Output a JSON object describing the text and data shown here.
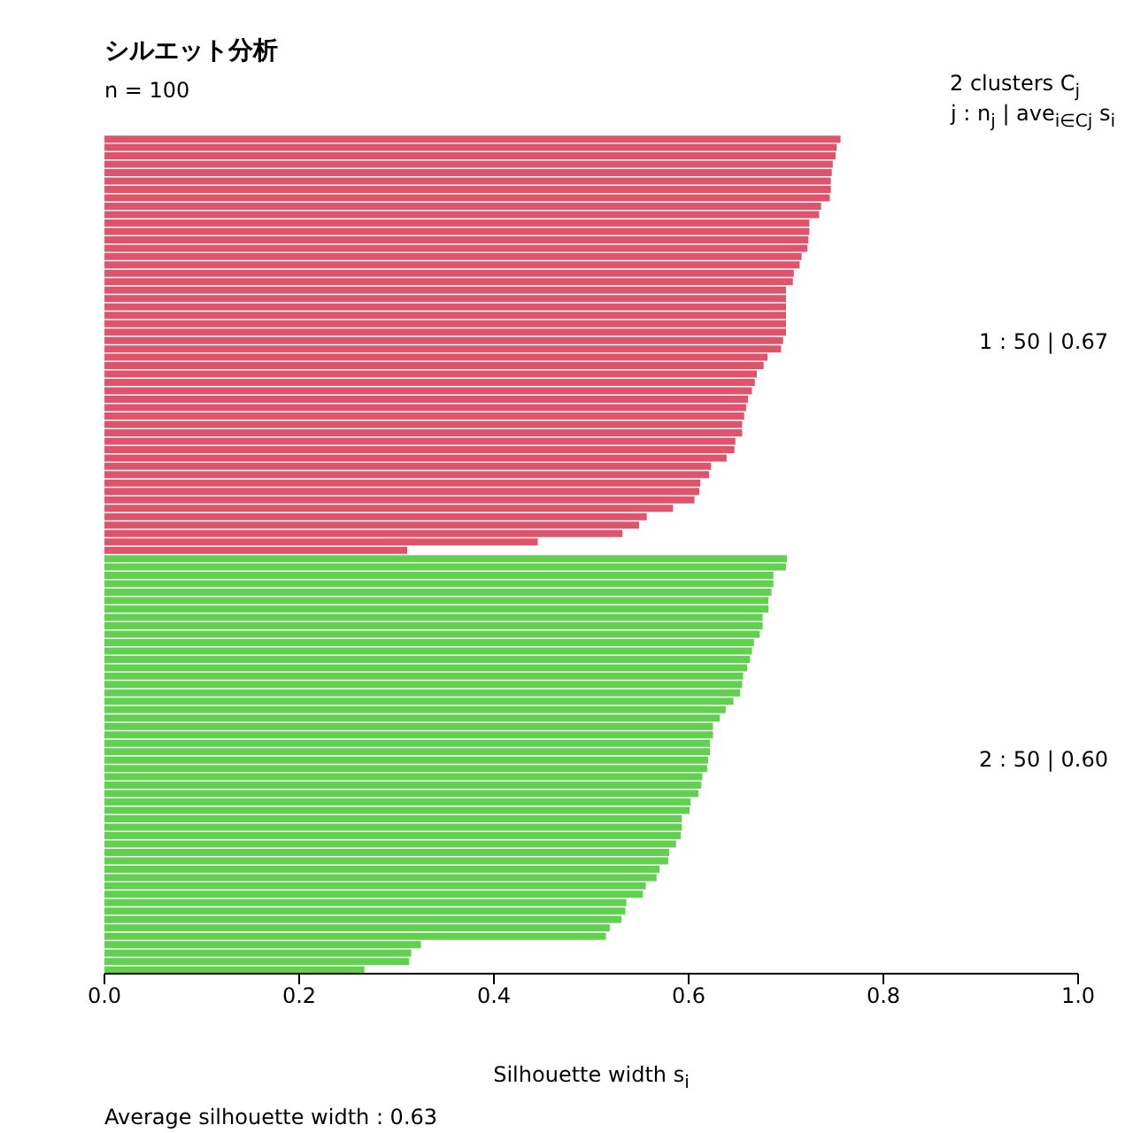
{
  "chart_data": {
    "type": "bar",
    "orientation": "horizontal",
    "title": "シルエット分析",
    "subtitle": "n = 100",
    "xlabel": "Silhouette width s$_{i}$",
    "annotations": [
      "2  clusters  C$_{j}$",
      "j :  n$_{j}$ | ave$_{i∈Cj}$  s$_{i}$",
      "1 :  50  |  0.67",
      "2 :  50  |  0.60",
      "Average silhouette width :  0.63"
    ],
    "categories": [
      null,
      null,
      null,
      null,
      null,
      null,
      null,
      null,
      null,
      null,
      null,
      null,
      null,
      null,
      null,
      null,
      null,
      null,
      null,
      null,
      null,
      null,
      null,
      null,
      null,
      null,
      null,
      null,
      null,
      null,
      null,
      null,
      null,
      null,
      null,
      null,
      null,
      null,
      null,
      null,
      null,
      null,
      null,
      null,
      null,
      null,
      null,
      null,
      null,
      null,
      null,
      null,
      null,
      null,
      null,
      null,
      null,
      null,
      null,
      null,
      null,
      null,
      null,
      null,
      null,
      null,
      null,
      null,
      null,
      null,
      null,
      null,
      null,
      null,
      null,
      null,
      null,
      null,
      null,
      null,
      null,
      null,
      null,
      null,
      null,
      null,
      null,
      null,
      null,
      null,
      null,
      null,
      null,
      null,
      null,
      null,
      null,
      null,
      null,
      null
    ],
    "values": [
      0.756,
      0.752,
      0.751,
      0.748,
      0.747,
      0.746,
      0.746,
      0.745,
      0.736,
      0.734,
      0.724,
      0.724,
      0.723,
      0.722,
      0.716,
      0.714,
      0.708,
      0.707,
      0.7,
      0.7,
      0.7,
      0.7,
      0.7,
      0.7,
      0.697,
      0.695,
      0.681,
      0.677,
      0.67,
      0.668,
      0.665,
      0.661,
      0.659,
      0.657,
      0.655,
      0.655,
      0.648,
      0.647,
      0.639,
      0.623,
      0.621,
      0.612,
      0.611,
      0.606,
      0.584,
      0.557,
      0.549,
      0.532,
      0.445,
      0.311,
      0.701,
      0.7,
      0.687,
      0.687,
      0.685,
      0.682,
      0.682,
      0.676,
      0.676,
      0.673,
      0.667,
      0.665,
      0.663,
      0.66,
      0.656,
      0.655,
      0.653,
      0.646,
      0.638,
      0.632,
      0.625,
      0.625,
      0.622,
      0.622,
      0.62,
      0.619,
      0.614,
      0.613,
      0.61,
      0.602,
      0.601,
      0.593,
      0.593,
      0.592,
      0.587,
      0.58,
      0.579,
      0.57,
      0.567,
      0.556,
      0.553,
      0.536,
      0.535,
      0.531,
      0.519,
      0.515,
      0.325,
      0.315,
      0.313,
      0.267
    ],
    "colors": [
      "#df536b",
      "#df536b",
      "#df536b",
      "#df536b",
      "#df536b",
      "#df536b",
      "#df536b",
      "#df536b",
      "#df536b",
      "#df536b",
      "#df536b",
      "#df536b",
      "#df536b",
      "#df536b",
      "#df536b",
      "#df536b",
      "#df536b",
      "#df536b",
      "#df536b",
      "#df536b",
      "#df536b",
      "#df536b",
      "#df536b",
      "#df536b",
      "#df536b",
      "#df536b",
      "#df536b",
      "#df536b",
      "#df536b",
      "#df536b",
      "#df536b",
      "#df536b",
      "#df536b",
      "#df536b",
      "#df536b",
      "#df536b",
      "#df536b",
      "#df536b",
      "#df536b",
      "#df536b",
      "#df536b",
      "#df536b",
      "#df536b",
      "#df536b",
      "#df536b",
      "#df536b",
      "#df536b",
      "#df536b",
      "#df536b",
      "#df536b",
      "#61d04f",
      "#61d04f",
      "#61d04f",
      "#61d04f",
      "#61d04f",
      "#61d04f",
      "#61d04f",
      "#61d04f",
      "#61d04f",
      "#61d04f",
      "#61d04f",
      "#61d04f",
      "#61d04f",
      "#61d04f",
      "#61d04f",
      "#61d04f",
      "#61d04f",
      "#61d04f",
      "#61d04f",
      "#61d04f",
      "#61d04f",
      "#61d04f",
      "#61d04f",
      "#61d04f",
      "#61d04f",
      "#61d04f",
      "#61d04f",
      "#61d04f",
      "#61d04f",
      "#61d04f",
      "#61d04f",
      "#61d04f",
      "#61d04f",
      "#61d04f",
      "#61d04f",
      "#61d04f",
      "#61d04f",
      "#61d04f",
      "#61d04f",
      "#61d04f",
      "#61d04f",
      "#61d04f",
      "#61d04f",
      "#61d04f",
      "#61d04f",
      "#61d04f",
      "#61d04f",
      "#61d04f",
      "#61d04f",
      "#61d04f"
    ],
    "xlim": [
      0,
      1
    ],
    "xticks": [
      {
        "value": 0,
        "label": "0.0"
      },
      {
        "value": 0.2,
        "label": "0.2"
      },
      {
        "value": 0.4,
        "label": "0.4"
      },
      {
        "value": 0.6,
        "label": "0.6"
      },
      {
        "value": 0.8,
        "label": "0.8"
      },
      {
        "value": 1,
        "label": "1.0"
      }
    ],
    "tick_labels": "x"
  }
}
